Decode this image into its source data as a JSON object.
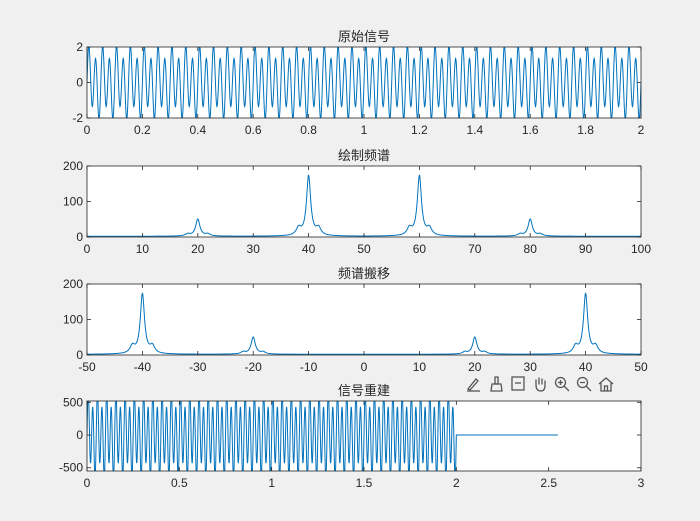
{
  "toolbar": {
    "icons": [
      "annotate-icon",
      "brush-icon",
      "data-tips-icon",
      "pan-icon",
      "zoom-in-icon",
      "zoom-out-icon",
      "home-icon"
    ]
  },
  "colors": {
    "line": "#0072bd",
    "axes": "#262626",
    "background": "#f0f0f0",
    "plot": "#ffffff"
  },
  "chart_data": [
    {
      "type": "line",
      "title": "原始信号",
      "xlabel": "",
      "ylabel": "",
      "xlim": [
        0,
        2
      ],
      "ylim": [
        -2,
        2
      ],
      "xticks": [
        "0",
        "0.2",
        "0.4",
        "0.6",
        "0.8",
        "1",
        "1.2",
        "1.4",
        "1.6",
        "1.8",
        "2"
      ],
      "yticks": [
        "-2",
        "0",
        "2"
      ],
      "signal": {
        "components_hz": [
          20,
          40
        ],
        "amplitudes": [
          0.5,
          1.7
        ],
        "duration_s": 2
      },
      "grid": false
    },
    {
      "type": "line",
      "title": "绘制频谱",
      "xlabel": "",
      "ylabel": "",
      "xlim": [
        0,
        100
      ],
      "ylim": [
        0,
        200
      ],
      "xticks": [
        "0",
        "10",
        "20",
        "30",
        "40",
        "50",
        "60",
        "70",
        "80",
        "90",
        "100"
      ],
      "yticks": [
        "0",
        "100",
        "200"
      ],
      "peaks": [
        {
          "x": 20,
          "y": 48
        },
        {
          "x": 40,
          "y": 170
        },
        {
          "x": 60,
          "y": 170
        },
        {
          "x": 80,
          "y": 48
        }
      ],
      "grid": false
    },
    {
      "type": "line",
      "title": "频谱搬移",
      "xlabel": "",
      "ylabel": "",
      "xlim": [
        -50,
        50
      ],
      "ylim": [
        0,
        200
      ],
      "xticks": [
        "-50",
        "-40",
        "-30",
        "-20",
        "-10",
        "0",
        "10",
        "20",
        "30",
        "40",
        "50"
      ],
      "yticks": [
        "0",
        "100",
        "200"
      ],
      "peaks": [
        {
          "x": -40,
          "y": 170
        },
        {
          "x": -20,
          "y": 48
        },
        {
          "x": 20,
          "y": 48
        },
        {
          "x": 40,
          "y": 170
        }
      ],
      "grid": false
    },
    {
      "type": "line",
      "title": "信号重建",
      "xlabel": "",
      "ylabel": "",
      "xlim": [
        0,
        3
      ],
      "ylim": [
        -550,
        520
      ],
      "xticks": [
        "0",
        "0.5",
        "1",
        "1.5",
        "2",
        "2.5",
        "3"
      ],
      "yticks": [
        "-500",
        "0",
        "500"
      ],
      "signal_end_s": 2,
      "flat_until_s": 2.55,
      "grid": false
    }
  ]
}
